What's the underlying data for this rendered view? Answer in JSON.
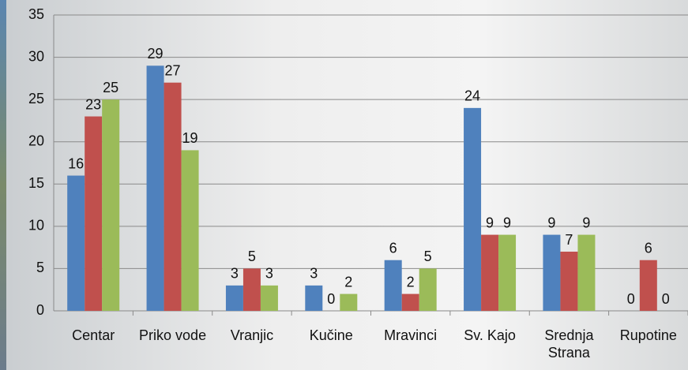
{
  "chart_data": {
    "type": "bar",
    "categories": [
      "Centar",
      "Priko vode",
      "Vranjic",
      "Kučine",
      "Mravinci",
      "Sv. Kajo",
      "Srednja Strana",
      "Rupotine"
    ],
    "series": [
      {
        "color": "#4f81bd",
        "values": [
          16,
          29,
          3,
          3,
          6,
          24,
          9,
          0
        ]
      },
      {
        "color": "#c0504d",
        "values": [
          23,
          27,
          5,
          0,
          2,
          9,
          7,
          6
        ]
      },
      {
        "color": "#9bbb59",
        "values": [
          25,
          19,
          3,
          2,
          5,
          9,
          9,
          0
        ]
      }
    ],
    "ylim": [
      0,
      35
    ],
    "yticks": [
      0,
      5,
      10,
      15,
      20,
      25,
      30,
      35
    ],
    "grid": true
  }
}
